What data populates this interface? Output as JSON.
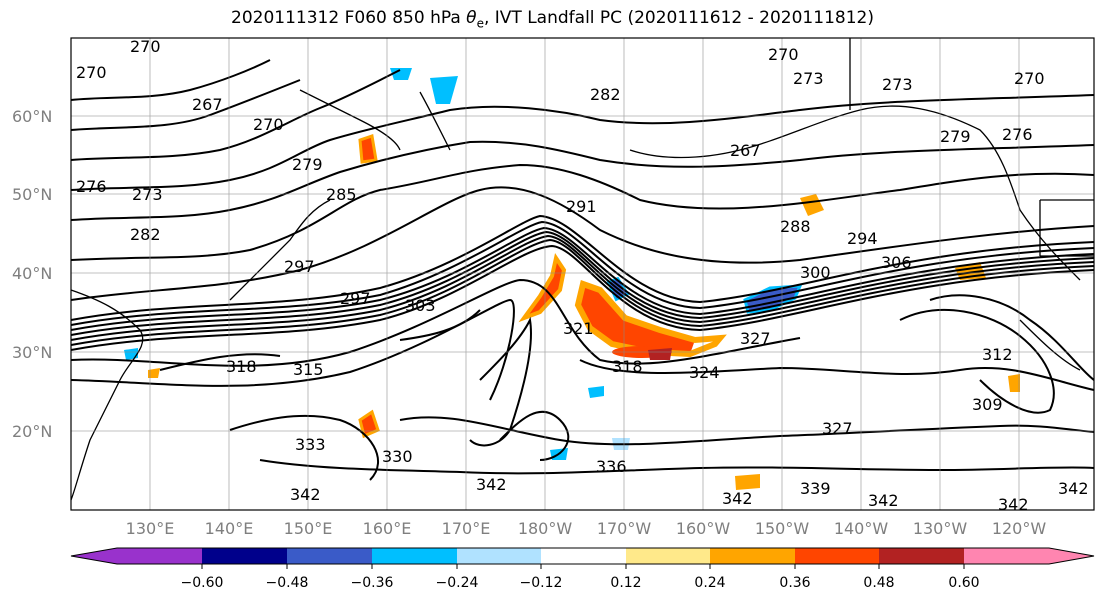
{
  "title": {
    "prefix": "2020111312 F060 850 hPa ",
    "symbol": "θ",
    "subscript": "e",
    "suffix": ", IVT Landfall PC (2020111612 - 2020111812)"
  },
  "lat_labels": [
    "20°N",
    "30°N",
    "40°N",
    "50°N",
    "60°N"
  ],
  "lon_labels": [
    "130°E",
    "140°E",
    "150°E",
    "160°E",
    "170°E",
    "180°W",
    "170°W",
    "160°W",
    "150°W",
    "140°W",
    "130°W",
    "120°W"
  ],
  "contour_labels": [
    "270",
    "270",
    "270",
    "267",
    "270",
    "273",
    "276",
    "273",
    "282",
    "279",
    "285",
    "297",
    "297",
    "303",
    "291",
    "282",
    "273",
    "270",
    "288",
    "294",
    "300",
    "306",
    "279",
    "276",
    "267",
    "318",
    "315",
    "321",
    "318",
    "324",
    "327",
    "312",
    "309",
    "333",
    "330",
    "342",
    "342",
    "336",
    "342",
    "339",
    "342",
    "342",
    "342",
    "327"
  ],
  "colorbar": {
    "colors": [
      "#9932cc",
      "#00008b",
      "#3a5bc8",
      "#00bfff",
      "#b0e2ff",
      "#ffffff",
      "#ffe98a",
      "#ffa500",
      "#ff4500",
      "#b22222",
      "#ff85b0"
    ],
    "ticks": [
      "−0.60",
      "−0.48",
      "−0.36",
      "−0.24",
      "−0.12",
      "0.12",
      "0.24",
      "0.36",
      "0.48",
      "0.60"
    ]
  }
}
